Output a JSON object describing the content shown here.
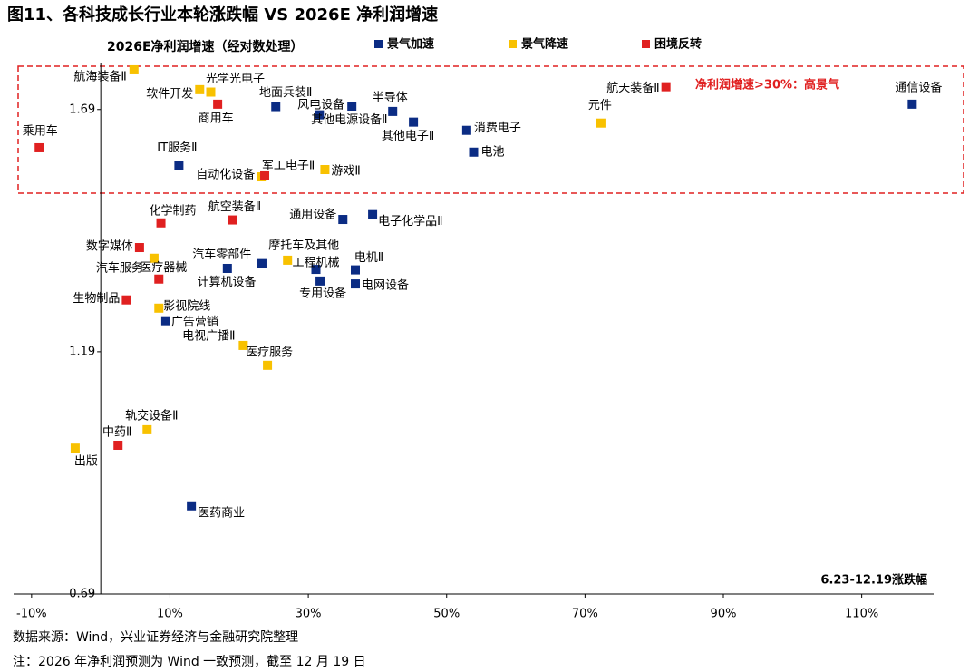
{
  "chart_data": {
    "type": "scatter",
    "title": "图11、各科技成长行业本轮涨跌幅 VS 2026E 净利润增速",
    "y_label": "2026E净利润增速（经对数处理）",
    "x_label": "6.23-12.19涨跌幅",
    "annotation": "净利润增速>30%：高景气",
    "xlim": [
      -12.6,
      120.4
    ],
    "ylim": [
      0.69,
      1.785
    ],
    "xticks": [
      {
        "value": -10,
        "label": "-10%"
      },
      {
        "value": 10,
        "label": "10%"
      },
      {
        "value": 30,
        "label": "30%"
      },
      {
        "value": 50,
        "label": "50%"
      },
      {
        "value": 70,
        "label": "70%"
      },
      {
        "value": 90,
        "label": "90%"
      },
      {
        "value": 110,
        "label": "110%"
      }
    ],
    "yticks": [
      0.69,
      1.19,
      1.69
    ],
    "series": [
      {
        "name": "景气加速",
        "color": "#0b2c84",
        "labels": [
          "通信设备",
          "地面兵装Ⅱ",
          "风电设备",
          "其他电源设备Ⅱ",
          "半导体",
          "其他电子Ⅱ",
          "消费电子",
          "电池",
          "IT服务Ⅱ",
          "通用设备",
          "电子化学品Ⅱ",
          "汽车零部件",
          "计算机设备",
          "工程机械",
          "电机Ⅱ",
          "专用设备",
          "电网设备",
          "广告营销",
          "医药商业"
        ],
        "x": [
          117.3,
          25.3,
          36.3,
          31.6,
          42.2,
          45.2,
          52.9,
          53.9,
          11.3,
          35.0,
          39.3,
          18.3,
          23.3,
          31.1,
          36.8,
          31.7,
          36.8,
          9.4,
          13.1
        ],
        "values": [
          1.701,
          1.696,
          1.697,
          1.679,
          1.686,
          1.664,
          1.647,
          1.602,
          1.574,
          1.463,
          1.473,
          1.362,
          1.372,
          1.36,
          1.359,
          1.336,
          1.33,
          1.254,
          0.872
        ]
      },
      {
        "name": "景气降速",
        "color": "#f8c100",
        "labels": [
          "航海装备Ⅱ",
          "光学光电子",
          "软件开发",
          "元件",
          "自动化设备",
          "游戏Ⅱ",
          "汽车服务",
          "摩托车及其他",
          "影视院线",
          "电视广播Ⅱ",
          "医疗服务",
          "轨交设备Ⅱ",
          "出版"
        ],
        "x": [
          4.8,
          15.9,
          14.3,
          72.3,
          23.2,
          32.4,
          7.7,
          27.0,
          8.4,
          20.6,
          24.1,
          6.7,
          -3.7
        ],
        "values": [
          1.772,
          1.726,
          1.731,
          1.662,
          1.551,
          1.566,
          1.383,
          1.379,
          1.28,
          1.203,
          1.162,
          1.029,
          0.991
        ]
      },
      {
        "name": "困境反转",
        "color": "#e02020",
        "labels": [
          "航天装备Ⅱ",
          "商用车",
          "乘用车",
          "军工电子Ⅱ",
          "化学制药",
          "航空装备Ⅱ",
          "数字媒体",
          "医疗器械",
          "生物制品",
          "中药Ⅱ"
        ],
        "x": [
          81.7,
          16.9,
          -8.9,
          23.7,
          8.7,
          19.1,
          5.6,
          8.4,
          3.7,
          2.5
        ],
        "values": [
          1.737,
          1.701,
          1.611,
          1.553,
          1.456,
          1.462,
          1.405,
          1.34,
          1.297,
          0.997
        ]
      }
    ],
    "footnotes": [
      "数据来源：Wind，兴业证券经济与金融研究院整理",
      "注：2026 年净利润预测为 Wind 一致预测，截至 12 月 19 日"
    ]
  }
}
